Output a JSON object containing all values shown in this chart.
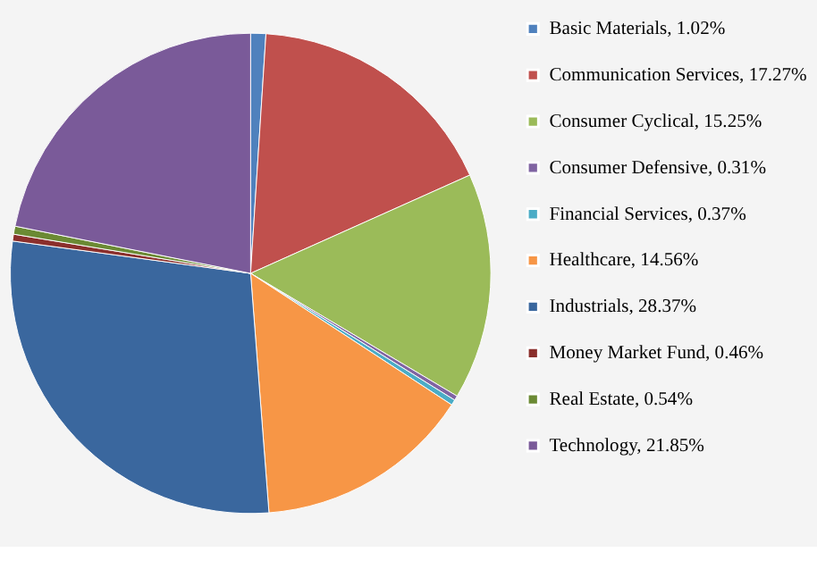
{
  "chart_data": {
    "type": "pie",
    "categories": [
      "Basic Materials",
      "Communication Services",
      "Consumer Cyclical",
      "Consumer Defensive",
      "Financial Services",
      "Healthcare",
      "Industrials",
      "Money Market Fund",
      "Real Estate",
      "Technology"
    ],
    "values": [
      1.02,
      17.27,
      15.25,
      0.31,
      0.37,
      14.56,
      28.37,
      0.46,
      0.54,
      21.85
    ],
    "value_labels": [
      "1.02%",
      "17.27%",
      "15.25%",
      "0.31%",
      "0.37%",
      "14.56%",
      "28.37%",
      "0.46%",
      "0.54%",
      "21.85%"
    ],
    "colors": [
      "#4f81bd",
      "#c0504d",
      "#9bbb59",
      "#8064a2",
      "#4bacc6",
      "#f79646",
      "#3a679e",
      "#8b2f2c",
      "#6b8a34",
      "#7a5a99"
    ],
    "legend": "right"
  }
}
